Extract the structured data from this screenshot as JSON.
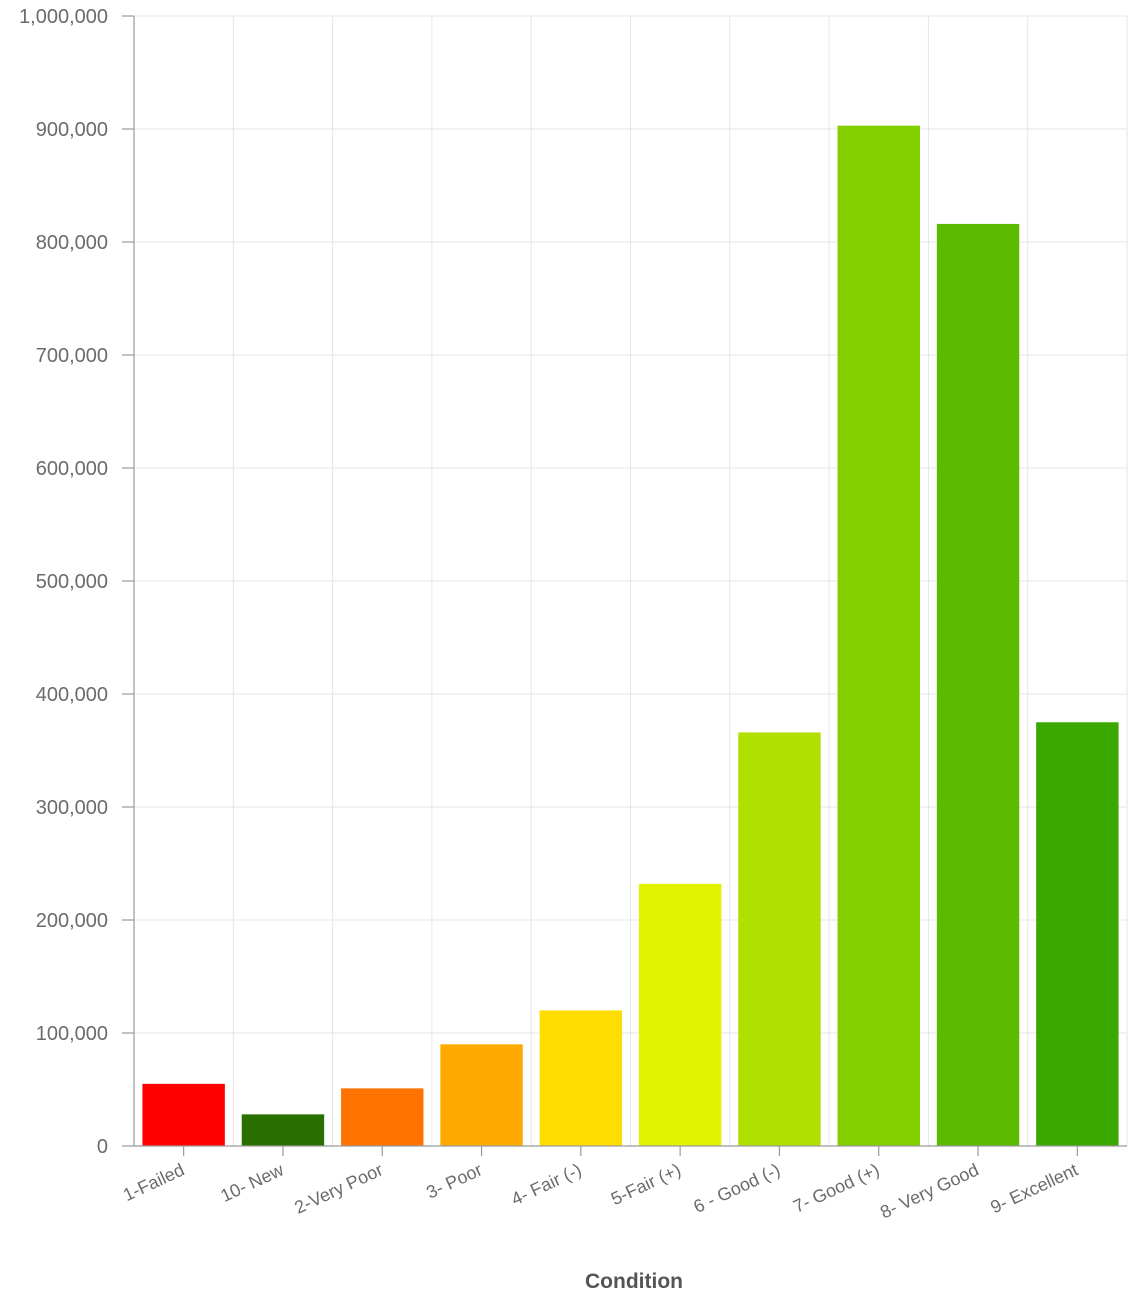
{
  "chart_data": {
    "type": "bar",
    "title": "",
    "xlabel": "Condition",
    "ylabel": "",
    "ylim": [
      0,
      1000000
    ],
    "y_ticks": [
      0,
      100000,
      200000,
      300000,
      400000,
      500000,
      600000,
      700000,
      800000,
      900000,
      1000000
    ],
    "y_tick_labels": [
      "0",
      "100,000",
      "200,000",
      "300,000",
      "400,000",
      "500,000",
      "600,000",
      "700,000",
      "800,000",
      "900,000",
      "1,000,000"
    ],
    "grid": true,
    "legend": "none",
    "categories": [
      "1-Failed",
      "10- New",
      "2-Very Poor",
      "3- Poor",
      "4- Fair (-)",
      "5-Fair (+)",
      "6 - Good (-)",
      "7- Good (+)",
      "8- Very Good",
      "9- Excellent"
    ],
    "values": [
      55000,
      28000,
      51000,
      90000,
      120000,
      232000,
      366000,
      903000,
      816000,
      375000
    ],
    "colors": [
      "#ff0000",
      "#2a7000",
      "#ff7300",
      "#ffaa00",
      "#ffdd00",
      "#e2f200",
      "#b0e000",
      "#84cf00",
      "#5cbb00",
      "#3aa800"
    ]
  }
}
